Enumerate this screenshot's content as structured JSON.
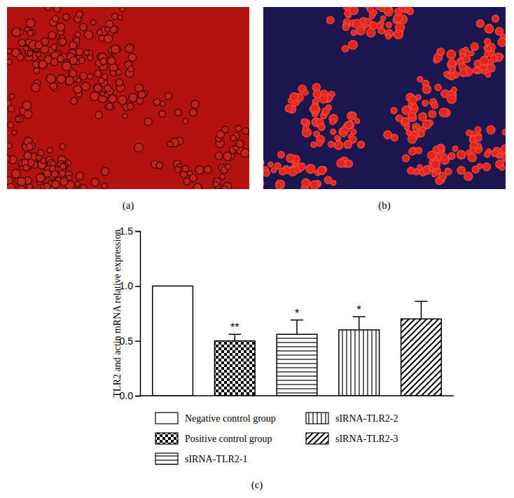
{
  "panel_labels": [
    "(a)",
    "(b)",
    "(c)"
  ],
  "chart_data": {
    "type": "bar",
    "y_label": "TLR2 and actin mRNA relative expression",
    "categories": [
      "Negative control group",
      "Positive control group",
      "sIRNA-TLR2-1",
      "sIRNA-TLR2-2",
      "sIRNA-TLR2-3"
    ],
    "values": [
      1.0,
      0.5,
      0.56,
      0.6,
      0.7
    ],
    "errors": [
      null,
      0.06,
      0.13,
      0.12,
      0.16
    ],
    "significance": [
      null,
      "**",
      "*",
      "*",
      null
    ],
    "color": "#000000",
    "ylim": [
      0,
      1.5
    ],
    "yticks": [
      {
        "value": 0,
        "label": "0.0"
      },
      0.5,
      {
        "value": 1,
        "label": "1.0"
      },
      1.5
    ],
    "tick_labels": "y",
    "grid": false
  }
}
